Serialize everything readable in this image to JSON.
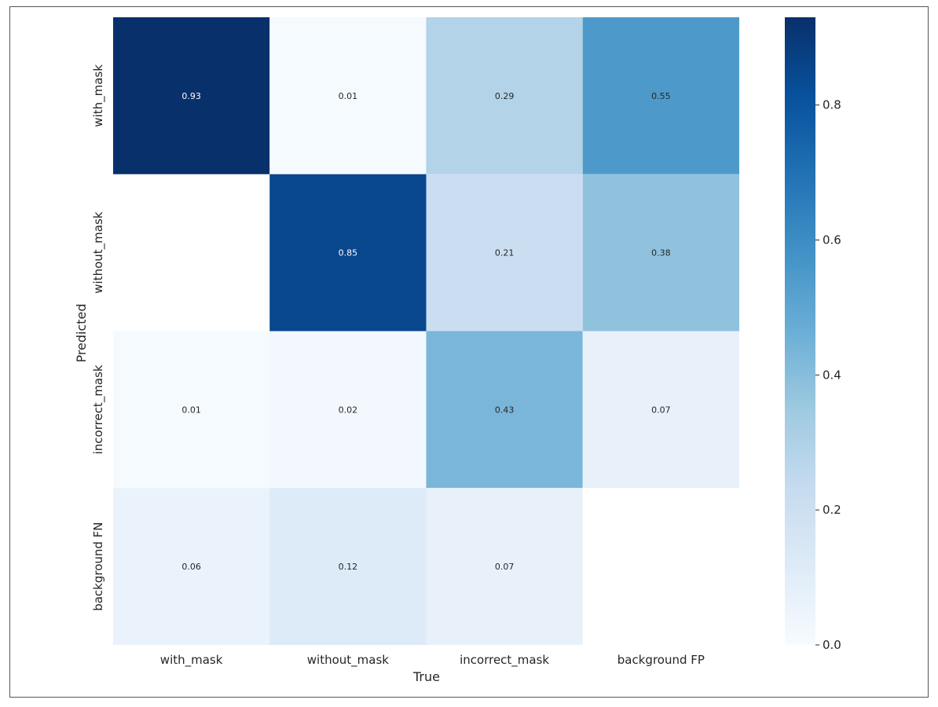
{
  "chart_data": {
    "type": "heatmap",
    "title": "",
    "xlabel": "True",
    "ylabel": "Predicted",
    "x_categories": [
      "with_mask",
      "without_mask",
      "incorrect_mask",
      "background FP"
    ],
    "y_categories": [
      "with_mask",
      "without_mask",
      "incorrect_mask",
      "background FN"
    ],
    "values": [
      [
        0.93,
        0.01,
        0.29,
        0.55
      ],
      [
        null,
        0.85,
        0.21,
        0.38
      ],
      [
        0.01,
        0.02,
        0.43,
        0.07
      ],
      [
        0.06,
        0.12,
        0.07,
        null
      ]
    ],
    "cell_labels": [
      [
        "0.93",
        "0.01",
        "0.29",
        "0.55"
      ],
      [
        "",
        "0.85",
        "0.21",
        "0.38"
      ],
      [
        "0.01",
        "0.02",
        "0.43",
        "0.07"
      ],
      [
        "0.06",
        "0.12",
        "0.07",
        ""
      ]
    ],
    "colormap": "Blues",
    "vmin": 0.0,
    "vmax": 0.93,
    "colorbar_ticks": [
      0.0,
      0.2,
      0.4,
      0.6,
      0.8
    ],
    "colorbar_tick_labels": [
      "0.0",
      "0.2",
      "0.4",
      "0.6",
      "0.8"
    ]
  }
}
